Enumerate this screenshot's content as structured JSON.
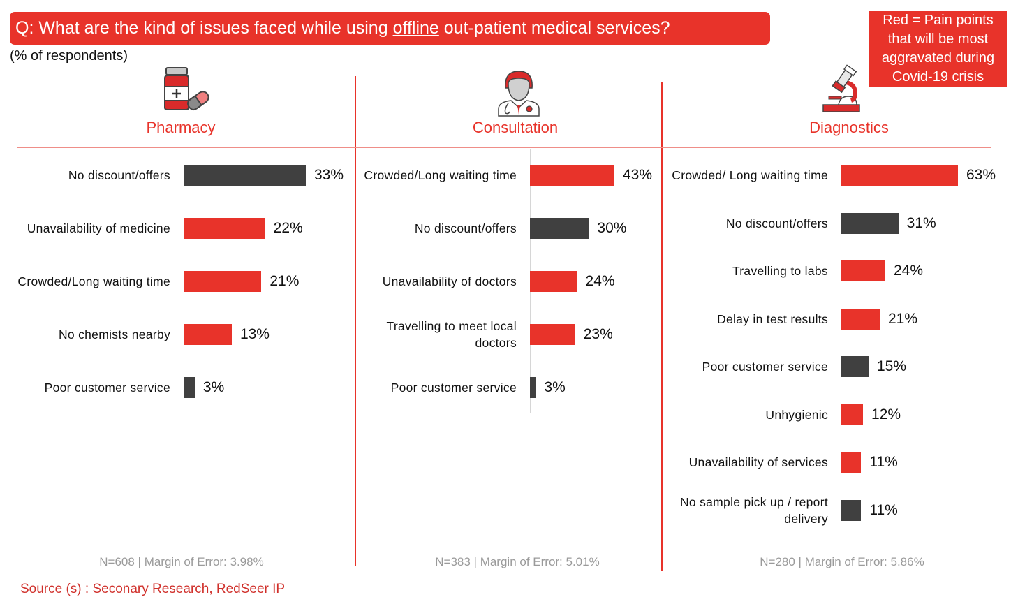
{
  "header": {
    "question_prefix": "Q: What are the kind of issues faced while using ",
    "question_emphasis": "offline",
    "question_suffix": " out-patient medical services?",
    "subtitle": "(% of respondents)"
  },
  "legend": {
    "line1": "Red = Pain points",
    "line2": "that will be most",
    "line3": "aggravated during",
    "line4": "Covid-19 crisis"
  },
  "colors": {
    "pain_point": "#e8332a",
    "other": "#404040",
    "accent": "#e8332a"
  },
  "chart_data": [
    {
      "type": "bar",
      "orientation": "horizontal",
      "title": "Pharmacy",
      "icon": "medicine-bottle-icon",
      "unit": "%",
      "categories": [
        "No discount/offers",
        "Unavailability of medicine",
        "Crowded/Long waiting time",
        "No chemists nearby",
        "Poor customer service"
      ],
      "values": [
        33,
        22,
        21,
        13,
        3
      ],
      "labels": [
        "33%",
        "22%",
        "21%",
        "13%",
        "3%"
      ],
      "pain_point": [
        false,
        true,
        true,
        true,
        false
      ],
      "footnote": "N=608 | Margin of Error: 3.98%"
    },
    {
      "type": "bar",
      "orientation": "horizontal",
      "title": "Consultation",
      "icon": "doctor-icon",
      "unit": "%",
      "categories": [
        "Crowded/Long waiting time",
        "No discount/offers",
        "Unavailability of doctors",
        "Travelling to meet local doctors",
        "Poor customer service"
      ],
      "values": [
        43,
        30,
        24,
        23,
        3
      ],
      "labels": [
        "43%",
        "30%",
        "24%",
        "23%",
        "3%"
      ],
      "pain_point": [
        true,
        false,
        true,
        true,
        false
      ],
      "footnote": "N=383 | Margin of Error: 5.01%"
    },
    {
      "type": "bar",
      "orientation": "horizontal",
      "title": "Diagnostics",
      "icon": "microscope-icon",
      "unit": "%",
      "categories": [
        "Crowded/ Long waiting time",
        "No discount/offers",
        "Travelling to labs",
        "Delay in test results",
        "Poor customer service",
        "Unhygienic",
        "Unavailability of services",
        "No sample pick up / report delivery"
      ],
      "values": [
        63,
        31,
        24,
        21,
        15,
        12,
        11,
        11
      ],
      "labels": [
        "63%",
        "31%",
        "24%",
        "21%",
        "15%",
        "12%",
        "11%",
        "11%"
      ],
      "pain_point": [
        true,
        false,
        true,
        true,
        false,
        true,
        true,
        false
      ],
      "footnote": "N=280 | Margin of Error: 5.86%"
    }
  ],
  "source": "Source (s) : Seconary Research, RedSeer IP"
}
